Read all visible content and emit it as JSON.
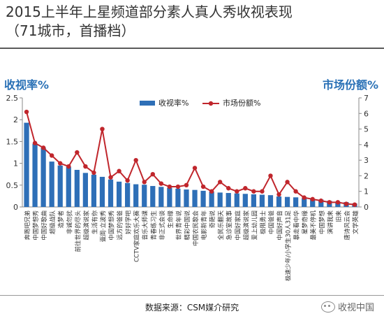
{
  "header": {
    "title_line1": "2015上半年上星频道部分素人真人秀收视表现",
    "title_line2": "（71城市，首播档）"
  },
  "source_text": "数据来源：CSM媒介研究",
  "watermark_text": "收视中国",
  "colors": {
    "bar": "#2e6fb7",
    "line": "#c0262c",
    "axis_title": "#2a71b6"
  },
  "chart_data": {
    "type": "bar",
    "ylabel_left": "收视率%",
    "ylabel_right": "市场份额%",
    "ylim_left": [
      0,
      2.5
    ],
    "yticks_left": [
      "0",
      "0.5",
      "1",
      "1.5",
      "2",
      "2.5"
    ],
    "ylim_right": [
      0,
      7
    ],
    "yticks_right": [
      "0",
      "1",
      "2",
      "3",
      "4",
      "5",
      "6",
      "7"
    ],
    "legend": [
      "收视率%",
      "市场份额%"
    ],
    "legend_position": "top-center",
    "categories": [
      "奔跑吧兄弟",
      "中国梦想秀",
      "中国好歌曲",
      "超级战队",
      "造梦者",
      "非诚勿扰",
      "前往世界的尽头",
      "超级演说家",
      "生活有你",
      "壹周·立波秀",
      "中国梦想秀",
      "远方的爸爸",
      "好好学吧",
      "CCTV家庭欢乐大赛",
      "音乐大师课",
      "青春练习生",
      "非正式会谈",
      "生命缘",
      "世界青年说",
      "精彩中国说",
      "中国农民歌会",
      "电影新青年",
      "奇葩说",
      "全民乐翻天",
      "急诊室故事",
      "中国好家庭",
      "超级演说家",
      "爱上幼儿园",
      "极限勇士",
      "中国爸爸",
      "中国好声音",
      "极速少年/小学生30人31足",
      "暴走看中华",
      "星梦奇缘",
      "最美不停机",
      "中国梦想",
      "演讲我来",
      "旧来",
      "唐诗风云会",
      "文学英雄"
    ],
    "series": [
      {
        "name": "收视率%",
        "type": "bar",
        "axis": "left",
        "values": [
          1.93,
          1.45,
          1.36,
          1.04,
          0.95,
          0.92,
          0.85,
          0.78,
          0.74,
          0.69,
          0.63,
          0.58,
          0.55,
          0.52,
          0.51,
          0.48,
          0.46,
          0.44,
          0.42,
          0.4,
          0.39,
          0.37,
          0.35,
          0.33,
          0.32,
          0.31,
          0.3,
          0.29,
          0.28,
          0.27,
          0.24,
          0.23,
          0.22,
          0.2,
          0.18,
          0.17,
          0.14,
          0.12,
          0.11,
          0.08
        ]
      },
      {
        "name": "市场份额%",
        "type": "line",
        "axis": "right",
        "values": [
          6.1,
          4.1,
          3.8,
          3.3,
          2.8,
          2.6,
          3.5,
          2.6,
          2.2,
          5.0,
          1.9,
          2.3,
          1.7,
          3.0,
          1.6,
          2.1,
          1.5,
          1.3,
          1.3,
          1.4,
          2.5,
          1.3,
          1.0,
          1.6,
          1.2,
          1.0,
          1.2,
          1.0,
          1.0,
          2.0,
          0.8,
          1.6,
          1.0,
          0.6,
          0.5,
          0.4,
          0.3,
          0.3,
          0.2,
          0.15
        ]
      }
    ]
  }
}
